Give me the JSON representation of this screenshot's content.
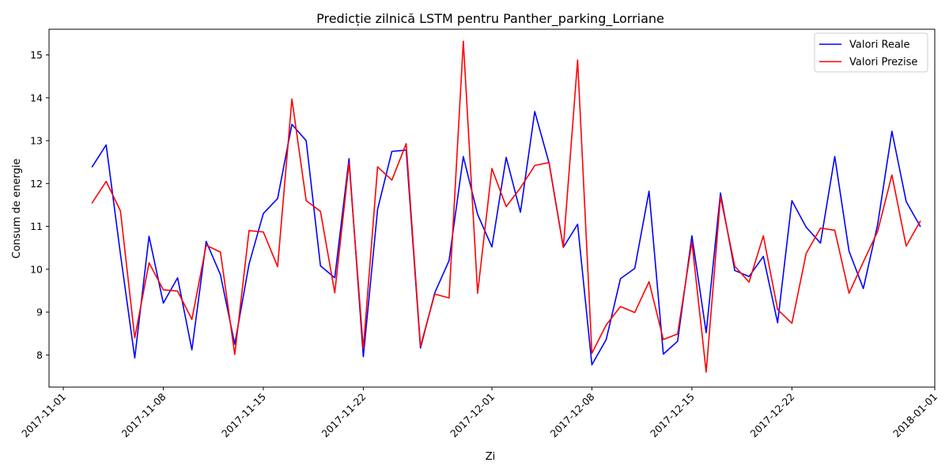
{
  "chart_data": {
    "type": "line",
    "title": "Predicție zilnică LSTM pentru Panther_parking_Lorriane",
    "xlabel": "Zi",
    "ylabel": "Consum de energie",
    "x_type": "date",
    "xlim": [
      "2017-10-31",
      "2018-01-01"
    ],
    "ylim": [
      7.25,
      15.6
    ],
    "x_ticks": [
      "2017-11-01",
      "2017-11-08",
      "2017-11-15",
      "2017-11-22",
      "2017-12-01",
      "2017-12-08",
      "2017-12-15",
      "2017-12-22",
      "2018-01-01"
    ],
    "y_ticks": [
      8,
      9,
      10,
      11,
      12,
      13,
      14,
      15
    ],
    "grid": false,
    "legend_position": "top-right",
    "x": [
      "2017-11-03",
      "2017-11-04",
      "2017-11-05",
      "2017-11-06",
      "2017-11-07",
      "2017-11-08",
      "2017-11-09",
      "2017-11-10",
      "2017-11-11",
      "2017-11-12",
      "2017-11-13",
      "2017-11-14",
      "2017-11-15",
      "2017-11-16",
      "2017-11-17",
      "2017-11-18",
      "2017-11-19",
      "2017-11-20",
      "2017-11-21",
      "2017-11-22",
      "2017-11-23",
      "2017-11-24",
      "2017-11-25",
      "2017-11-26",
      "2017-11-27",
      "2017-11-28",
      "2017-11-29",
      "2017-11-30",
      "2017-12-01",
      "2017-12-02",
      "2017-12-03",
      "2017-12-04",
      "2017-12-05",
      "2017-12-06",
      "2017-12-07",
      "2017-12-08",
      "2017-12-09",
      "2017-12-10",
      "2017-12-11",
      "2017-12-12",
      "2017-12-13",
      "2017-12-14",
      "2017-12-15",
      "2017-12-16",
      "2017-12-17",
      "2017-12-18",
      "2017-12-19",
      "2017-12-20",
      "2017-12-21",
      "2017-12-22",
      "2017-12-23",
      "2017-12-24",
      "2017-12-25",
      "2017-12-26",
      "2017-12-27",
      "2017-12-28",
      "2017-12-29",
      "2017-12-30",
      "2017-12-31"
    ],
    "series": [
      {
        "name": "Valori Reale",
        "color": "#0000ff",
        "values": [
          12.38,
          12.9,
          10.35,
          7.93,
          10.77,
          9.21,
          9.8,
          8.12,
          10.65,
          9.87,
          8.25,
          10.12,
          11.3,
          11.65,
          13.38,
          13.0,
          10.08,
          9.8,
          12.58,
          7.96,
          11.4,
          12.75,
          12.78,
          8.16,
          9.45,
          10.2,
          12.63,
          11.28,
          10.52,
          12.61,
          11.33,
          13.68,
          12.48,
          10.51,
          11.05,
          7.77,
          8.36,
          9.78,
          10.02,
          11.82,
          8.02,
          8.32,
          10.78,
          8.52,
          11.78,
          9.97,
          9.83,
          10.3,
          8.75,
          11.6,
          10.98,
          10.61,
          12.63,
          10.42,
          9.55,
          11.04,
          13.22,
          11.58,
          10.99
        ]
      },
      {
        "name": "Valori Prezise",
        "color": "#ff0000",
        "values": [
          11.54,
          12.05,
          11.36,
          8.4,
          10.15,
          9.52,
          9.49,
          8.83,
          10.56,
          10.4,
          8.01,
          10.9,
          10.87,
          10.06,
          13.97,
          11.6,
          11.35,
          9.45,
          12.48,
          8.15,
          12.39,
          12.08,
          12.93,
          8.2,
          9.42,
          9.33,
          15.32,
          9.44,
          12.35,
          11.46,
          11.9,
          12.42,
          12.49,
          10.51,
          14.88,
          8.04,
          8.7,
          9.13,
          8.99,
          9.71,
          8.36,
          8.49,
          10.64,
          7.6,
          11.69,
          10.07,
          9.7,
          10.78,
          9.06,
          8.74,
          10.37,
          10.96,
          10.91,
          9.44,
          10.17,
          10.88,
          12.2,
          10.54,
          11.13
        ]
      }
    ]
  }
}
